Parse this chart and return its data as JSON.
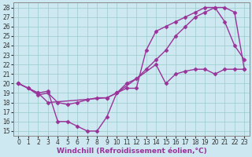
{
  "xlabel": "Windchill (Refroidissement éolien,°C)",
  "background_color": "#cde8f0",
  "line_color": "#993399",
  "grid_color": "#99cccc",
  "xlim": [
    -0.5,
    23.5
  ],
  "ylim": [
    14.5,
    28.5
  ],
  "xticks": [
    0,
    1,
    2,
    3,
    4,
    5,
    6,
    7,
    8,
    9,
    10,
    11,
    12,
    13,
    14,
    15,
    16,
    17,
    18,
    19,
    20,
    21,
    22,
    23
  ],
  "yticks": [
    15,
    16,
    17,
    18,
    19,
    20,
    21,
    22,
    23,
    24,
    25,
    26,
    27,
    28
  ],
  "line1_x": [
    0,
    1,
    2,
    3,
    4,
    5,
    6,
    7,
    8,
    9,
    10,
    11,
    12,
    13,
    14,
    15,
    16,
    17,
    18,
    19,
    20,
    21,
    22,
    23
  ],
  "line1_y": [
    20,
    19.5,
    18.8,
    19,
    18,
    17.8,
    18,
    18.3,
    18.5,
    18.5,
    19,
    20,
    20.5,
    21.5,
    22.5,
    23.5,
    25,
    26,
    27,
    27.5,
    28,
    28,
    27.5,
    21.5
  ],
  "line2_x": [
    0,
    1,
    2,
    3,
    4,
    5,
    6,
    7,
    8,
    9,
    10,
    11,
    12,
    13,
    14,
    15,
    16,
    17,
    18,
    19,
    20,
    21,
    22,
    23
  ],
  "line2_y": [
    20,
    19.5,
    19,
    19.2,
    16,
    16,
    15.5,
    15,
    15,
    16.5,
    19,
    19.5,
    19.5,
    23.5,
    25.5,
    26,
    26.5,
    27,
    27.5,
    28,
    28,
    26.5,
    24,
    22.5
  ],
  "line3_x": [
    0,
    2,
    3,
    9,
    10,
    14,
    15,
    16,
    17,
    18,
    19,
    20,
    21,
    22,
    23
  ],
  "line3_y": [
    20,
    19,
    18,
    18.5,
    19,
    22,
    20,
    21,
    21.3,
    21.5,
    21.5,
    21,
    21.5,
    21.5,
    21.5
  ],
  "marker": "D",
  "markersize": 2.5,
  "linewidth": 1.0,
  "tick_fontsize": 5.5,
  "label_fontsize": 6.5
}
